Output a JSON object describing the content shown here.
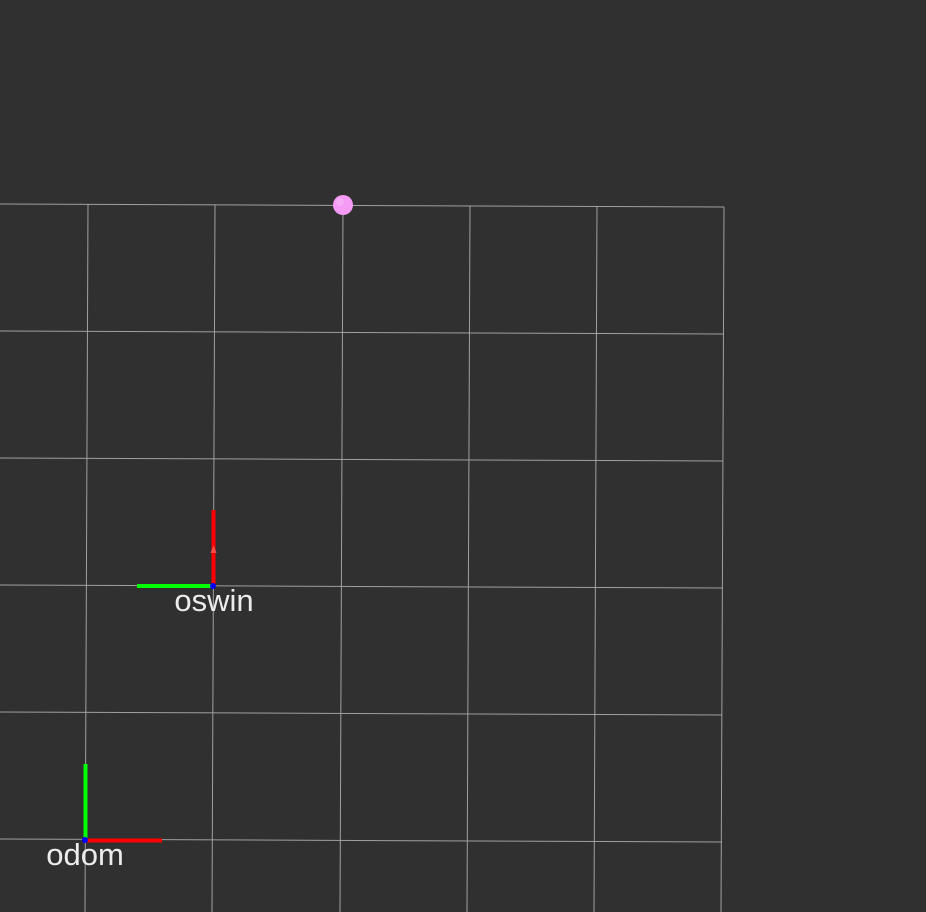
{
  "viewport": {
    "background_color": "#303030",
    "grid_color": "#a0a0a0"
  },
  "axis_colors": {
    "x": "#ff0000",
    "y": "#00ff00",
    "z": "#0000ff"
  },
  "frames": [
    {
      "name": "oswin",
      "x_axis_direction": "up",
      "y_axis_direction": "left"
    },
    {
      "name": "odom",
      "x_axis_direction": "right",
      "y_axis_direction": "up"
    }
  ],
  "marker": {
    "color": "#f59af5",
    "icon": "sphere-marker"
  }
}
